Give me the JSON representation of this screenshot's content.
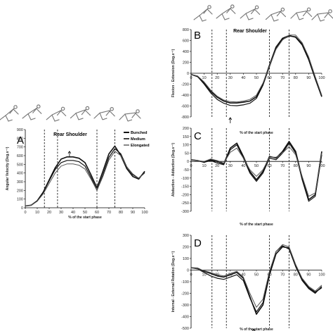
{
  "chart_data": [
    {
      "id": "A",
      "type": "line",
      "panel_letter": "A",
      "title": "Rear Shoulder",
      "xlabel": "% of the start phase",
      "ylabel": "Angular Velocity (Deg.s⁻¹)",
      "xlim": [
        0,
        100
      ],
      "ylim": [
        0,
        900
      ],
      "xticks": [
        0,
        10,
        20,
        30,
        40,
        50,
        60,
        70,
        80,
        90,
        100
      ],
      "yticks": [
        0,
        100,
        200,
        300,
        400,
        500,
        600,
        700,
        800,
        900
      ],
      "phase_lines": [
        16,
        27,
        60,
        75
      ],
      "arrow_x": 37,
      "legend": [
        "Bunched",
        "Medium",
        "Elongated"
      ],
      "legend_position": "top-right",
      "series": [
        {
          "name": "Bunched",
          "x": [
            0,
            5,
            10,
            15,
            20,
            25,
            30,
            35,
            40,
            45,
            50,
            55,
            60,
            65,
            70,
            75,
            80,
            85,
            90,
            95,
            100
          ],
          "y": [
            20,
            30,
            80,
            180,
            320,
            460,
            560,
            585,
            585,
            570,
            520,
            380,
            230,
            420,
            620,
            710,
            600,
            450,
            360,
            330,
            420
          ]
        },
        {
          "name": "Medium",
          "x": [
            0,
            5,
            10,
            15,
            20,
            25,
            30,
            35,
            40,
            45,
            50,
            55,
            60,
            65,
            70,
            75,
            80,
            85,
            90,
            95,
            100
          ],
          "y": [
            20,
            30,
            80,
            175,
            310,
            440,
            520,
            545,
            545,
            530,
            480,
            350,
            200,
            380,
            580,
            680,
            620,
            470,
            380,
            340,
            410
          ]
        },
        {
          "name": "Elongated",
          "x": [
            0,
            5,
            10,
            15,
            20,
            25,
            30,
            35,
            40,
            45,
            50,
            55,
            60,
            65,
            70,
            75,
            80,
            85,
            90,
            95,
            100
          ],
          "y": [
            20,
            30,
            75,
            160,
            280,
            400,
            480,
            505,
            505,
            490,
            445,
            330,
            200,
            360,
            550,
            650,
            600,
            470,
            390,
            340,
            400
          ]
        }
      ]
    },
    {
      "id": "B",
      "type": "line",
      "panel_letter": "B",
      "title": "Rear Shoulder",
      "xlabel": "% of the start phase",
      "ylabel": "Flexion - Extension (Deg.s⁻¹)",
      "xlim": [
        0,
        100
      ],
      "ylim": [
        -800,
        800
      ],
      "xticks": [
        0,
        10,
        20,
        30,
        40,
        50,
        60,
        70,
        80,
        90,
        100
      ],
      "yticks": [
        -800,
        -600,
        -400,
        -200,
        0,
        200,
        400,
        600,
        800
      ],
      "phase_lines": [
        16,
        27,
        60,
        75
      ],
      "arrow_x": 30,
      "series": [
        {
          "name": "Bunched",
          "x": [
            0,
            5,
            10,
            15,
            20,
            25,
            30,
            35,
            40,
            45,
            50,
            55,
            60,
            65,
            70,
            75,
            80,
            85,
            90,
            95,
            100
          ],
          "y": [
            -20,
            -60,
            -180,
            -330,
            -440,
            -510,
            -545,
            -545,
            -530,
            -510,
            -430,
            -200,
            150,
            480,
            640,
            690,
            660,
            520,
            250,
            -100,
            -430
          ]
        },
        {
          "name": "Medium",
          "x": [
            0,
            5,
            10,
            15,
            20,
            25,
            30,
            35,
            40,
            45,
            50,
            55,
            60,
            65,
            70,
            75,
            80,
            85,
            90,
            95,
            100
          ],
          "y": [
            -20,
            -60,
            -200,
            -360,
            -480,
            -550,
            -590,
            -595,
            -580,
            -550,
            -460,
            -220,
            120,
            450,
            620,
            680,
            670,
            540,
            280,
            -80,
            -420
          ]
        },
        {
          "name": "Elongated",
          "x": [
            0,
            5,
            10,
            15,
            20,
            25,
            30,
            35,
            40,
            45,
            50,
            55,
            60,
            65,
            70,
            75,
            80,
            85,
            90,
            95,
            100
          ],
          "y": [
            -20,
            -50,
            -160,
            -310,
            -420,
            -490,
            -520,
            -525,
            -510,
            -480,
            -400,
            -180,
            130,
            440,
            610,
            700,
            700,
            560,
            300,
            -60,
            -400
          ]
        }
      ]
    },
    {
      "id": "C",
      "type": "line",
      "panel_letter": "C",
      "title": "",
      "xlabel": "% of the start phase",
      "ylabel": "Abduction - Adduction (Deg.s⁻¹)",
      "xlim": [
        0,
        100
      ],
      "ylim": [
        -300,
        200
      ],
      "xticks": [
        0,
        10,
        20,
        30,
        40,
        50,
        60,
        70,
        80,
        90,
        100
      ],
      "yticks": [
        -300,
        -250,
        -200,
        -150,
        -100,
        -50,
        0,
        50,
        100,
        150,
        200
      ],
      "phase_lines": [
        16,
        27,
        60,
        75
      ],
      "series": [
        {
          "name": "Bunched",
          "x": [
            0,
            5,
            10,
            15,
            20,
            25,
            30,
            35,
            40,
            45,
            50,
            55,
            60,
            65,
            70,
            75,
            80,
            85,
            90,
            95,
            100
          ],
          "y": [
            10,
            5,
            -5,
            10,
            0,
            -15,
            80,
            110,
            30,
            -60,
            -110,
            -60,
            30,
            20,
            60,
            120,
            60,
            -100,
            -230,
            -200,
            60
          ]
        },
        {
          "name": "Medium",
          "x": [
            0,
            5,
            10,
            15,
            20,
            25,
            30,
            35,
            40,
            45,
            50,
            55,
            60,
            65,
            70,
            75,
            80,
            85,
            90,
            95,
            100
          ],
          "y": [
            10,
            5,
            -5,
            5,
            -10,
            -20,
            70,
            100,
            20,
            -70,
            -120,
            -70,
            20,
            10,
            50,
            110,
            50,
            -110,
            -240,
            -210,
            40
          ]
        },
        {
          "name": "Elongated",
          "x": [
            0,
            5,
            10,
            15,
            20,
            25,
            30,
            35,
            40,
            45,
            50,
            55,
            60,
            65,
            70,
            75,
            80,
            85,
            90,
            95,
            100
          ],
          "y": [
            10,
            5,
            0,
            15,
            5,
            -10,
            55,
            80,
            20,
            -50,
            -90,
            -50,
            25,
            25,
            50,
            90,
            40,
            -90,
            -210,
            -190,
            50
          ]
        }
      ]
    },
    {
      "id": "D",
      "type": "line",
      "panel_letter": "D",
      "title": "",
      "xlabel": "% of the start phase",
      "ylabel": "Internal - External Rotation (Deg.s⁻¹)",
      "xlim": [
        0,
        100
      ],
      "ylim": [
        -500,
        300
      ],
      "xticks": [
        0,
        10,
        20,
        30,
        40,
        50,
        60,
        70,
        80,
        90,
        100
      ],
      "yticks": [
        -500,
        -400,
        -300,
        -200,
        -100,
        0,
        100,
        200,
        300
      ],
      "phase_lines": [
        16,
        27,
        60,
        75
      ],
      "arrow_x": 48,
      "series": [
        {
          "name": "Bunched",
          "x": [
            0,
            5,
            10,
            15,
            20,
            25,
            30,
            35,
            40,
            45,
            50,
            55,
            60,
            65,
            70,
            75,
            80,
            85,
            90,
            95,
            100
          ],
          "y": [
            20,
            15,
            -10,
            -30,
            -50,
            -60,
            -40,
            -20,
            -70,
            -230,
            -380,
            -300,
            -40,
            140,
            200,
            190,
            40,
            -80,
            -150,
            -190,
            -150
          ]
        },
        {
          "name": "Medium",
          "x": [
            0,
            5,
            10,
            15,
            20,
            25,
            30,
            35,
            40,
            45,
            50,
            55,
            60,
            65,
            70,
            75,
            80,
            85,
            90,
            95,
            100
          ],
          "y": [
            20,
            10,
            -20,
            -50,
            -70,
            -80,
            -60,
            -40,
            -90,
            -240,
            -360,
            -280,
            -20,
            160,
            210,
            180,
            30,
            -90,
            -160,
            -200,
            -140
          ]
        },
        {
          "name": "Elongated",
          "x": [
            0,
            5,
            10,
            15,
            20,
            25,
            30,
            35,
            40,
            45,
            50,
            55,
            60,
            65,
            70,
            75,
            80,
            85,
            90,
            95,
            100
          ],
          "y": [
            20,
            10,
            -5,
            -20,
            -40,
            -50,
            -30,
            -10,
            -60,
            -200,
            -320,
            -250,
            -10,
            160,
            220,
            200,
            50,
            -70,
            -140,
            -180,
            -130
          ]
        }
      ]
    }
  ]
}
